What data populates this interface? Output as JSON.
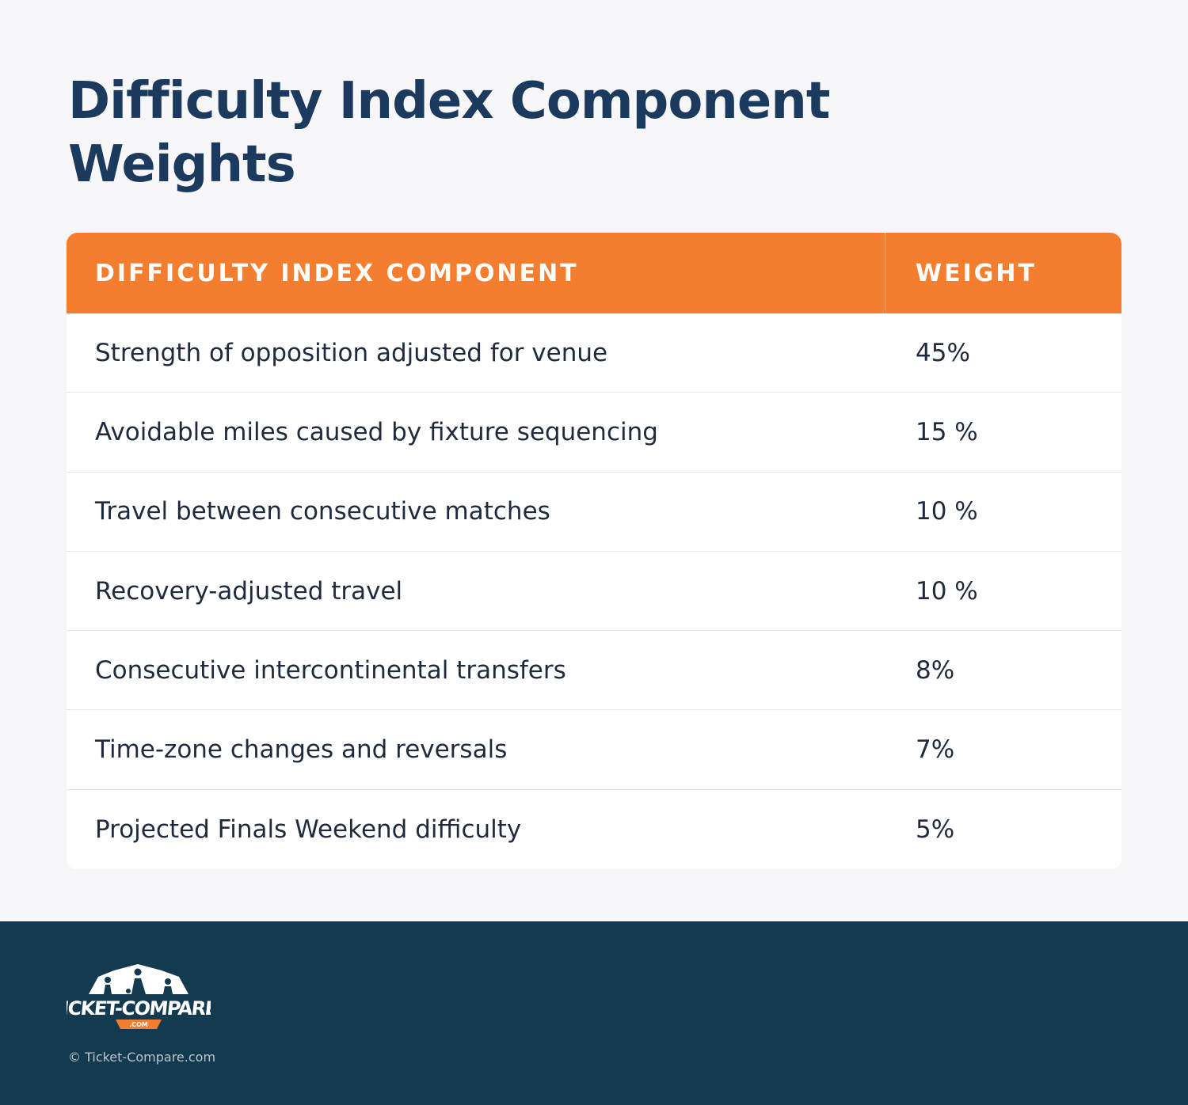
{
  "title": "Difficulty Index Component Weights",
  "table": {
    "headers": [
      "DIFFICULTY INDEX COMPONENT",
      "WEIGHT"
    ],
    "rows": [
      {
        "component": "Strength of opposition adjusted for venue",
        "weight": "45%"
      },
      {
        "component": "Avoidable miles caused by fixture sequencing",
        "weight": "15 %"
      },
      {
        "component": "Travel between consecutive matches",
        "weight": "10 %"
      },
      {
        "component": "Recovery-adjusted travel",
        "weight": "10 %"
      },
      {
        "component": "Consecutive intercontinental transfers",
        "weight": "8%"
      },
      {
        "component": "Time-zone changes and reversals",
        "weight": "7%"
      },
      {
        "component": "Projected Finals Weekend difficulty",
        "weight": "5%"
      }
    ]
  },
  "footer": {
    "logo_text": "TICKET-COMPARE",
    "logo_subtext": ".COM",
    "copyright": "© Ticket-Compare.com"
  },
  "colors": {
    "title": "#1c3a5e",
    "header_bg": "#f47e30",
    "footer_bg": "#133a4e",
    "page_bg": "#f7f7f9"
  }
}
